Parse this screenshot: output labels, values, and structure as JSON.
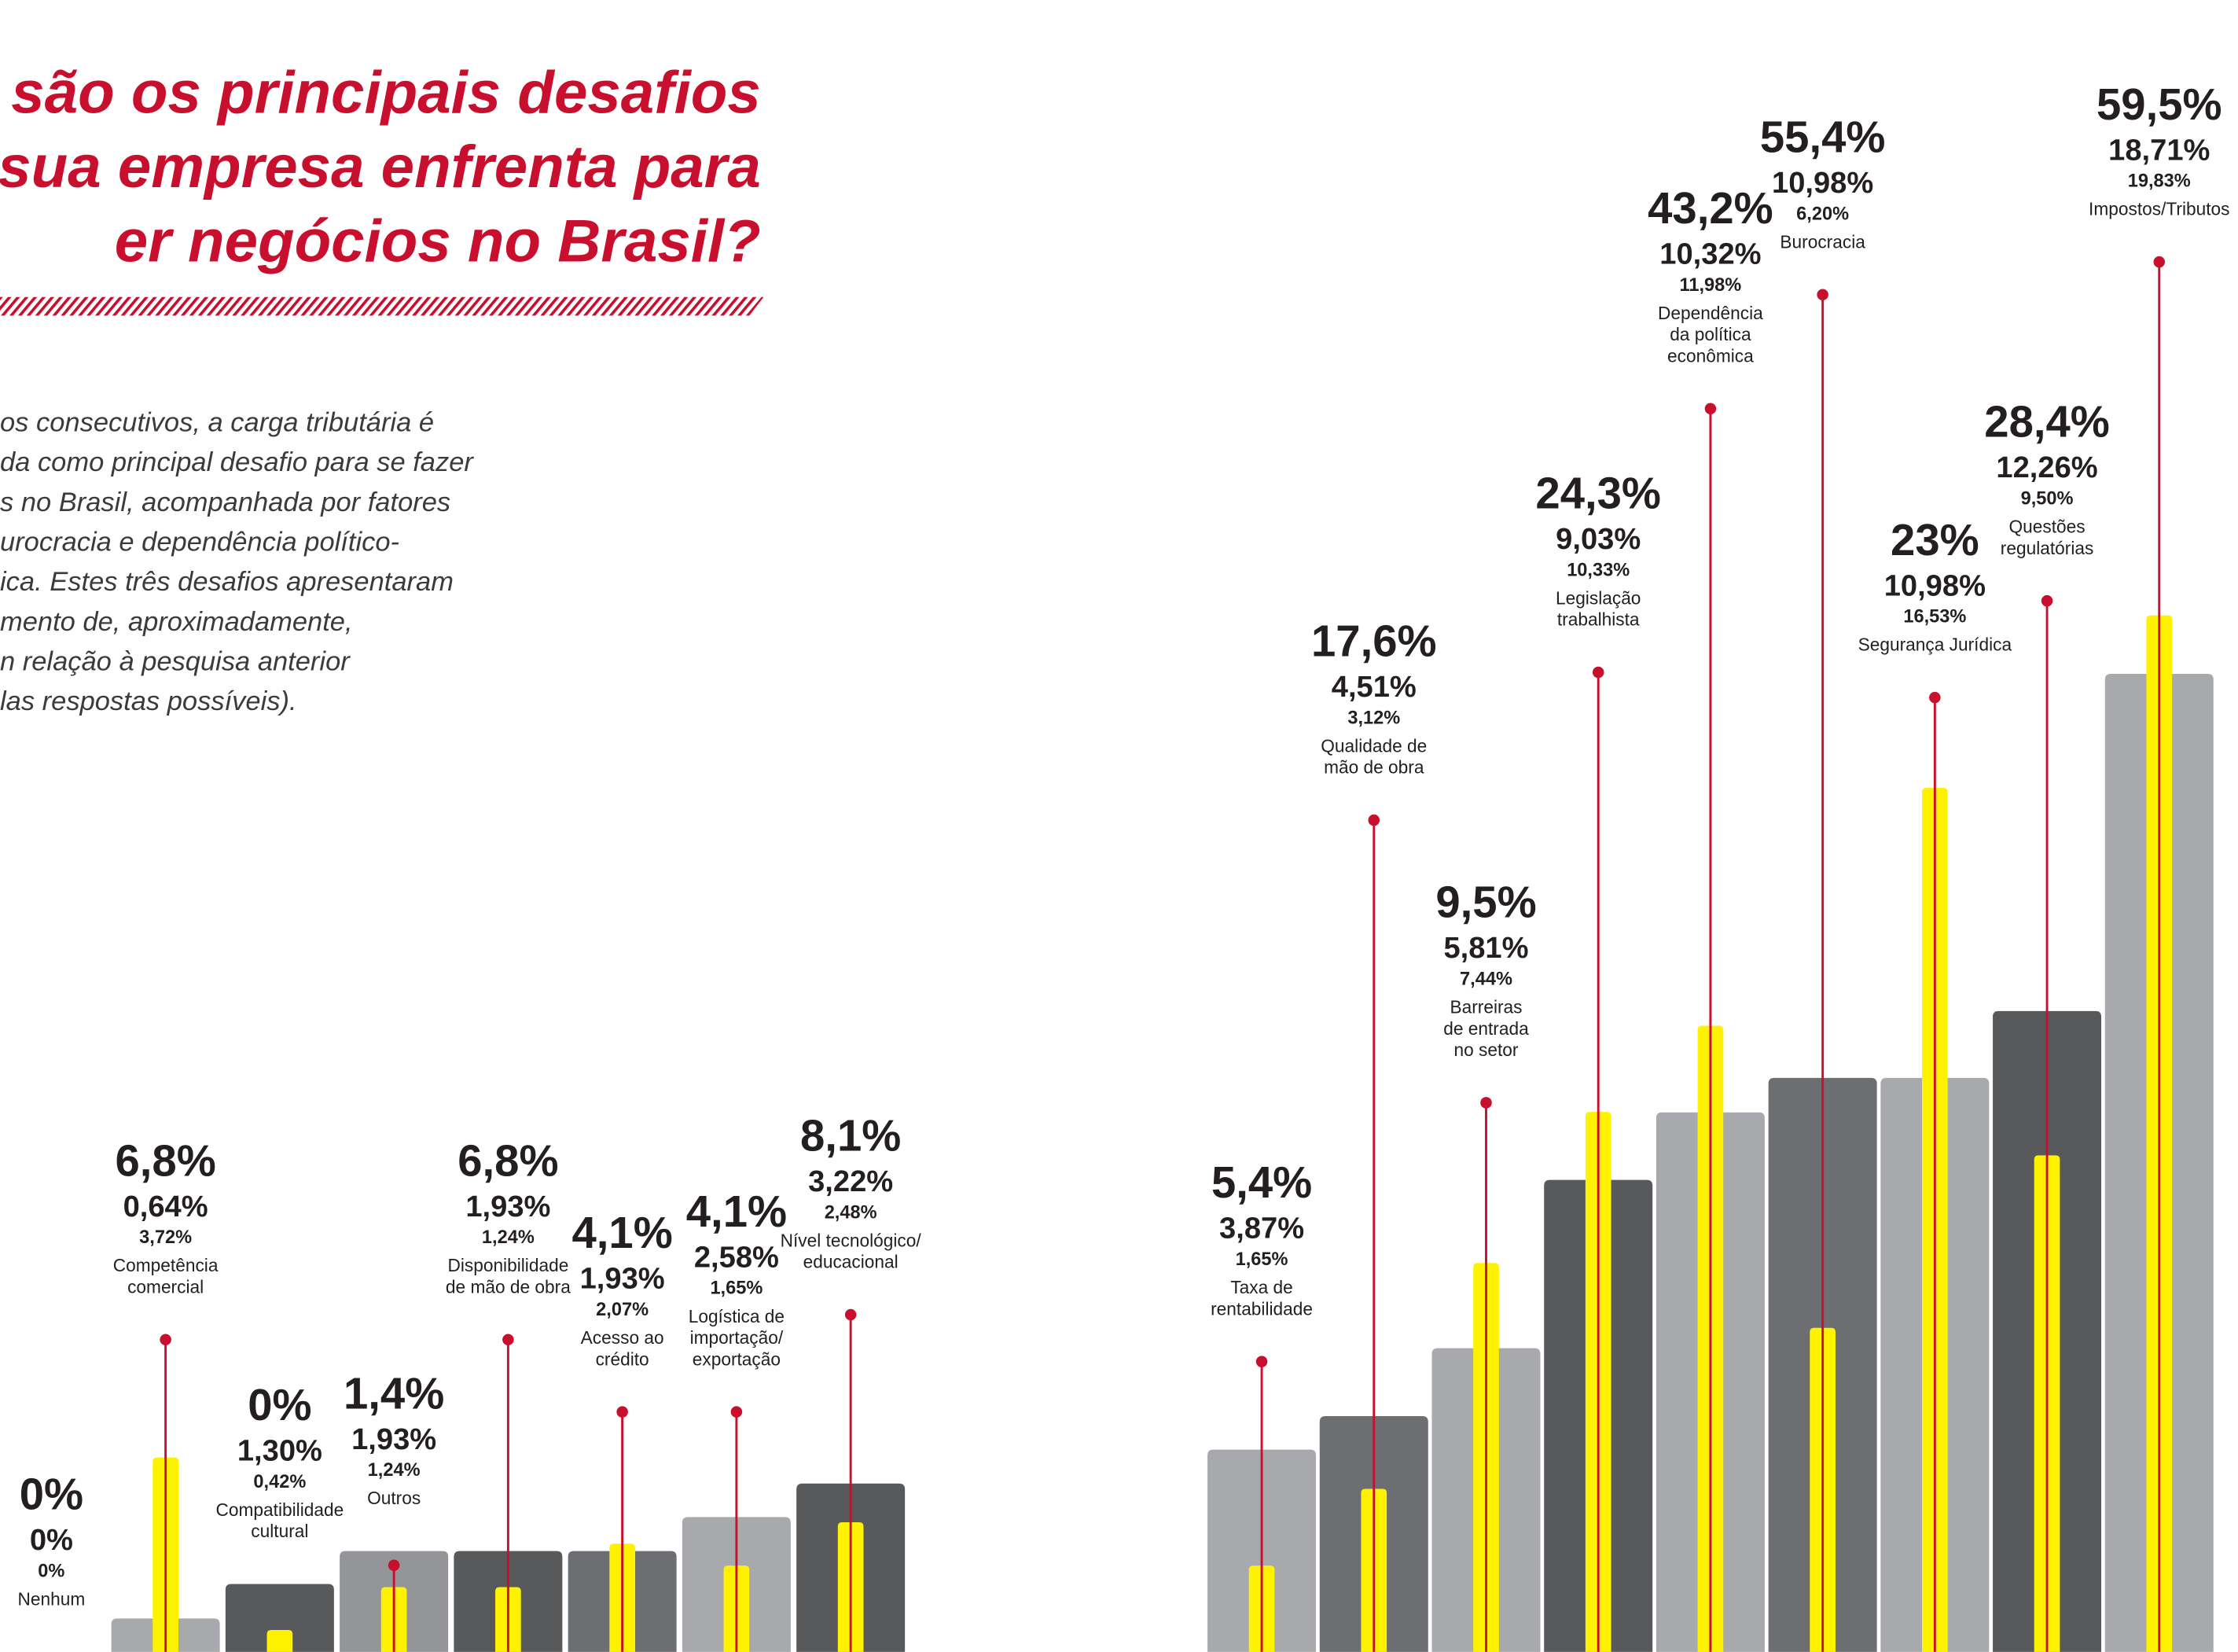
{
  "header": {
    "title": [
      "is são os principais desafios",
      "sua empresa enfrenta para",
      "er negócios no Brasil?"
    ],
    "body": [
      "os consecutivos, a carga tributária é",
      "da como principal desafio para se fazer",
      "s no Brasil, acompanhada por fatores",
      "urocracia e dependência político-",
      "ica. Estes três desafios apresentaram",
      "mento de, aproximadamente,",
      "n relação à pesquisa anterior",
      "las respostas possíveis)."
    ]
  },
  "chart_data": [
    {
      "type": "bar",
      "ylim": [
        0,
        31.6
      ],
      "categories": [
        [
          "Nenhum"
        ],
        [
          "Competência",
          "comercial"
        ],
        [
          "Compatibilidade",
          "cultural"
        ],
        [
          "Outros"
        ],
        [
          "Disponibilidade",
          "de mão de obra"
        ],
        [
          "Acesso ao",
          "crédito"
        ],
        [
          "Logística de",
          "importação/",
          "exportação"
        ],
        [
          "Nível tecnológico/",
          "educacional"
        ]
      ],
      "series": [
        {
          "color": "#c8102e",
          "values": [
            0,
            6.8,
            0,
            1.4,
            6.8,
            4.1,
            4.1,
            8.1
          ],
          "value_labels": [
            "0%",
            "6,8%",
            "0%",
            "1,4%",
            "6,8%",
            "4,1%",
            "4,1%",
            "8,1%"
          ]
        },
        {
          "colors": [
            "#a7a9ac",
            "#a7a9ac",
            "#58595b",
            "#939598",
            "#58595b",
            "#6d6e71",
            "#a7a9ac",
            "#58595b"
          ],
          "values": [
            0,
            0.64,
            1.3,
            1.93,
            1.93,
            1.93,
            2.58,
            3.22
          ],
          "value_labels": [
            "0%",
            "0,64%",
            "1,30%",
            "1,93%",
            "1,93%",
            "1,93%",
            "2,58%",
            "3,22%"
          ]
        },
        {
          "color": "#fff200",
          "values": [
            0,
            3.72,
            0.42,
            1.24,
            1.24,
            2.07,
            1.65,
            2.48
          ],
          "value_labels": [
            "0%",
            "3,72%",
            "0,42%",
            "1,24%",
            "1,24%",
            "2,07%",
            "1,65%",
            "2,48%"
          ]
        }
      ]
    },
    {
      "type": "bar",
      "ylim": [
        0,
        31.6
      ],
      "categories": [
        [
          "Taxa de",
          "rentabilidade"
        ],
        [
          "Qualidade de",
          "mão de obra"
        ],
        [
          "Barreiras",
          "de entrada",
          "no setor"
        ],
        [
          "Legislação",
          "trabalhista"
        ],
        [
          "Dependência",
          "da política",
          "econômica"
        ],
        [
          "Burocracia"
        ],
        [
          "Segurança Jurídica"
        ],
        [
          "Questões",
          "regulatórias"
        ],
        [
          "Impostos/Tributos"
        ]
      ],
      "series": [
        {
          "color": "#c8102e",
          "values": [
            5.4,
            17.6,
            9.5,
            24.3,
            43.2,
            55.4,
            23,
            28.4,
            59.5
          ],
          "value_labels": [
            "5,4%",
            "17,6%",
            "9,5%",
            "24,3%",
            "43,2%",
            "55,4%",
            "23%",
            "28,4%",
            "59,5%"
          ]
        },
        {
          "colors": [
            "#a7a9ac",
            "#6d6e71",
            "#a7a9ac",
            "#58595b",
            "#a7a9ac",
            "#6d6e71",
            "#a7a9ac",
            "#58595b",
            "#a7a9ac"
          ],
          "values": [
            3.87,
            4.51,
            5.81,
            9.03,
            10.32,
            10.98,
            10.98,
            12.26,
            18.71
          ],
          "value_labels": [
            "3,87%",
            "4,51%",
            "5,81%",
            "9,03%",
            "10,32%",
            "10,98%",
            "10,98%",
            "12,26%",
            "18,71%"
          ]
        },
        {
          "color": "#fff200",
          "values": [
            1.65,
            3.12,
            7.44,
            10.33,
            11.98,
            6.2,
            16.53,
            9.5,
            19.83
          ],
          "value_labels": [
            "1,65%",
            "3,12%",
            "7,44%",
            "10,33%",
            "11,98%",
            "6,20%",
            "16,53%",
            "9,50%",
            "19,83%"
          ]
        }
      ]
    }
  ]
}
